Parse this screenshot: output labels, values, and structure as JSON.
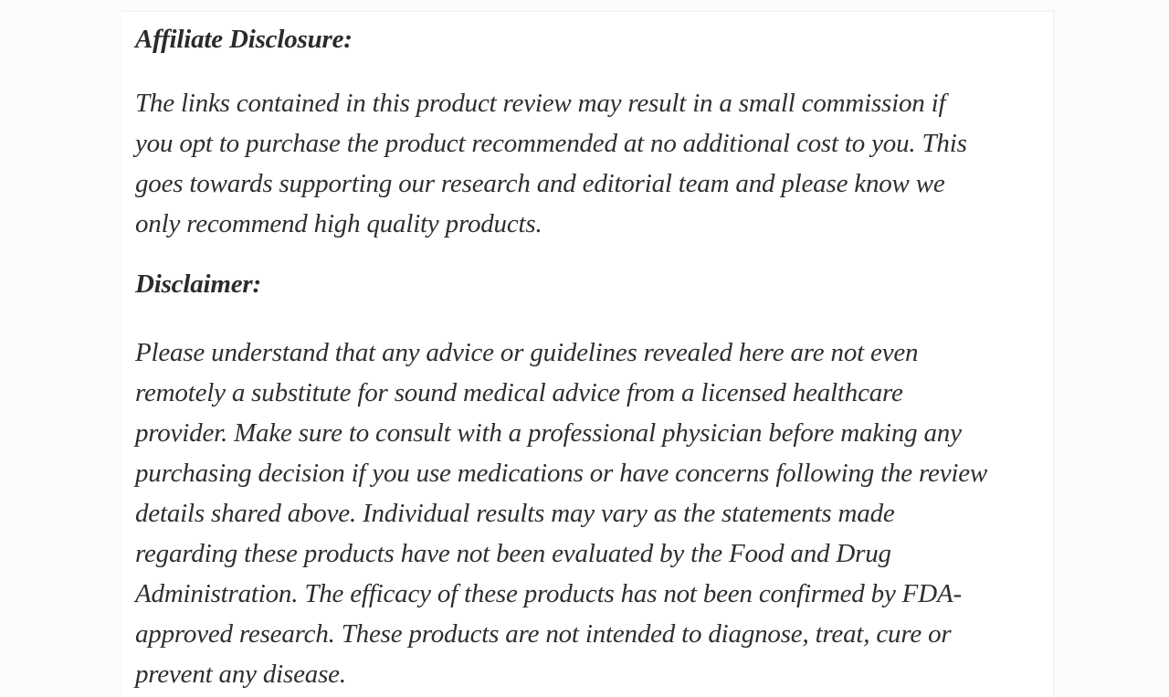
{
  "page": {
    "background_color": "#fbfbfb",
    "card_background_color": "#ffffff",
    "text_color": "#2e2e2e"
  },
  "content": {
    "affiliate": {
      "heading": "Affiliate Disclosure:",
      "lines": [
        "The links contained in this product review may result in a small commission if",
        "you opt to purchase the product recommended at no additional cost to you. This",
        "goes towards supporting our research and editorial team and please know we",
        "only recommend high quality products."
      ]
    },
    "disclaimer": {
      "heading": "Disclaimer:",
      "lines": [
        "Please understand that any advice or guidelines revealed here are not even",
        "remotely a substitute for sound medical advice from a licensed healthcare",
        "provider. Make sure to consult with a professional physician before making any",
        "purchasing decision if you use medications or have concerns following the review",
        "details shared above. Individual results may vary as the statements made",
        "regarding these products have not been evaluated by the Food and Drug",
        "Administration. The efficacy of these products has not been confirmed by FDA-",
        "approved research. These products are not intended to diagnose, treat, cure or",
        "prevent any disease."
      ]
    }
  }
}
